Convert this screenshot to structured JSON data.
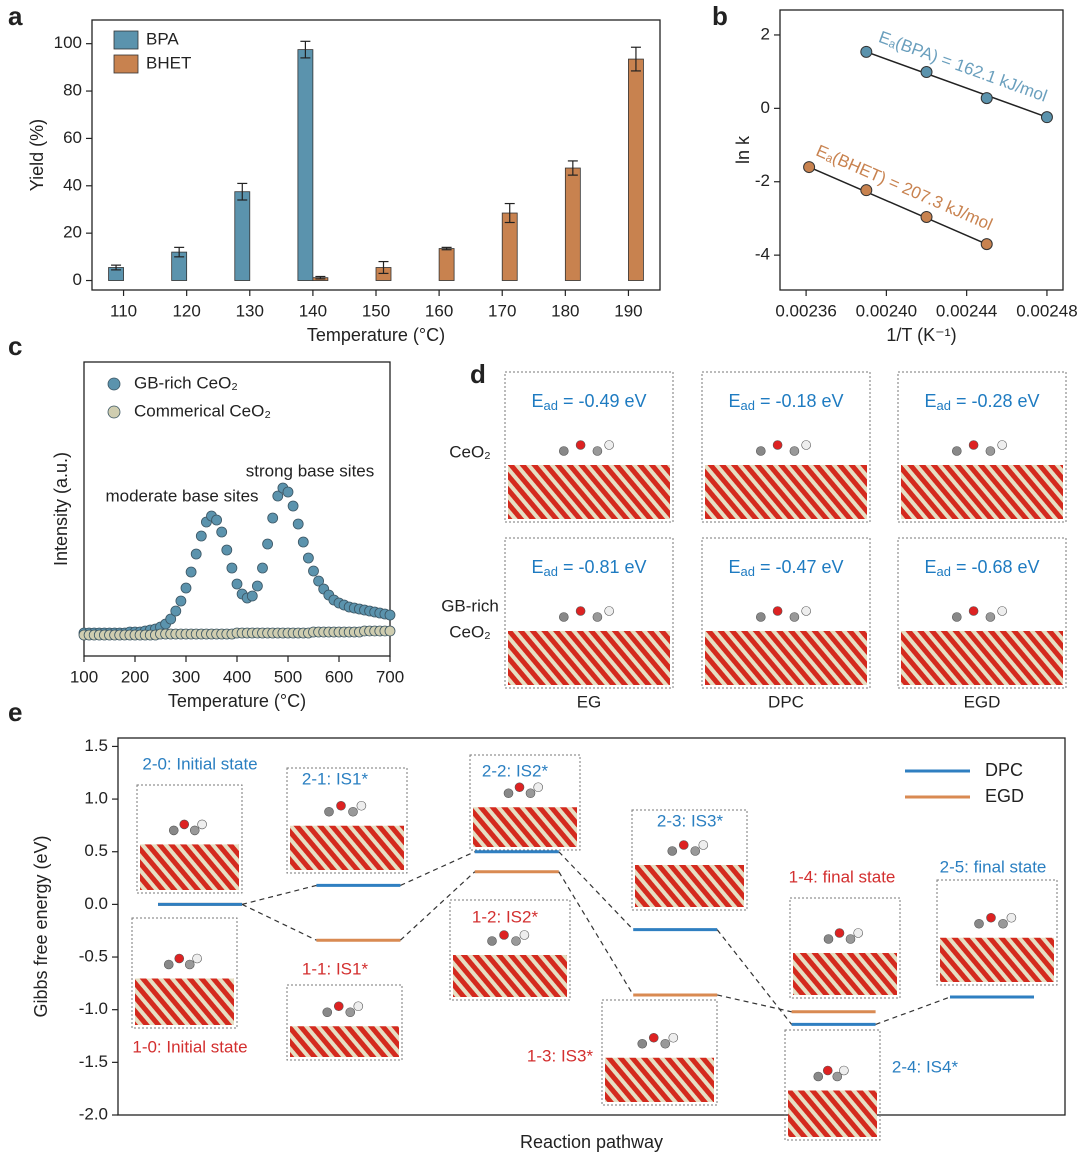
{
  "chart_data": [
    {
      "type": "bar",
      "panel_label": "a",
      "x_label": "Temperature (°C)",
      "y_label": "Yield (%)",
      "categories": [
        "110",
        "120",
        "130",
        "140",
        "150",
        "160",
        "170",
        "180",
        "190"
      ],
      "series": [
        {
          "name": "BPA",
          "color": "#5b93ad",
          "values": [
            5.5,
            12,
            37.5,
            97.5,
            null,
            null,
            null,
            null,
            null
          ],
          "errors": [
            1,
            2,
            3.5,
            3.5,
            null,
            null,
            null,
            null,
            null
          ]
        },
        {
          "name": "BHET",
          "color": "#c8824f",
          "values": [
            null,
            null,
            null,
            1.2,
            5.5,
            13.5,
            28.5,
            47.5,
            93.5
          ],
          "errors": [
            null,
            null,
            null,
            0.5,
            2.5,
            0.5,
            4,
            3,
            5
          ]
        }
      ],
      "ylim": [
        -4,
        110
      ],
      "yticks": [
        0,
        20,
        40,
        60,
        80,
        100
      ],
      "legend": "upper left",
      "error_bars": true
    },
    {
      "type": "scatter",
      "panel_label": "b",
      "x_label": "1/T (K⁻¹)",
      "y_label": "ln k",
      "fit": true,
      "series": [
        {
          "name": "BPA",
          "color": "#5b93ad",
          "x": [
            0.00239,
            0.00242,
            0.00245,
            0.00248
          ],
          "values": [
            1.54,
            0.99,
            0.28,
            -0.24
          ],
          "annotation": "Eₐ(BPA) = 162.1 kJ/mol",
          "annotation_color": "#6a9fbd"
        },
        {
          "name": "BHET",
          "color": "#c8824f",
          "x": [
            0.0023615,
            0.00239,
            0.00242,
            0.00245
          ],
          "values": [
            -1.6,
            -2.23,
            -2.96,
            -3.7
          ],
          "annotation": "Eₐ(BHET) = 207.3 kJ/mol",
          "annotation_color": "#c8824f"
        }
      ],
      "xlim": [
        0.002347,
        0.002488
      ],
      "xticks": [
        0.00236,
        {
          "value": 0.0024,
          "label": "0.00240"
        },
        0.00244,
        0.00248
      ],
      "ylim": [
        -4.95,
        2.68
      ],
      "yticks": [
        -4,
        -2,
        0,
        2
      ]
    },
    {
      "type": "line",
      "panel_label": "c",
      "x_label": "Temperature (°C)",
      "y_label": "Intensity (a.u.)",
      "markers": true,
      "legend": "upper left",
      "annotations": [
        "moderate base sites",
        "strong base sites"
      ],
      "x": [
        100,
        110,
        120,
        130,
        140,
        150,
        160,
        170,
        180,
        190,
        200,
        210,
        220,
        230,
        240,
        250,
        260,
        270,
        280,
        290,
        300,
        310,
        320,
        330,
        340,
        350,
        360,
        370,
        380,
        390,
        400,
        410,
        420,
        430,
        440,
        450,
        460,
        470,
        480,
        490,
        500,
        510,
        520,
        530,
        540,
        550,
        560,
        570,
        580,
        590,
        600,
        610,
        620,
        630,
        640,
        650,
        660,
        670,
        680,
        690,
        700
      ],
      "series": [
        {
          "name": "GB-rich CeO₂",
          "color": "#5b93ad",
          "values": [
            23,
            23,
            23,
            23,
            23,
            23,
            23,
            23,
            23,
            24,
            24,
            24,
            25,
            26,
            27,
            29,
            32,
            37,
            45,
            55,
            68,
            84,
            102,
            120,
            134,
            140,
            136,
            124,
            106,
            88,
            72,
            62,
            58,
            60,
            70,
            88,
            112,
            138,
            160,
            168,
            164,
            150,
            132,
            114,
            98,
            85,
            75,
            67,
            61,
            56,
            53,
            51,
            49,
            48,
            47,
            46,
            45,
            44,
            43,
            42,
            41
          ]
        },
        {
          "name": "Commerical CeO₂",
          "color": "#cfcdb0",
          "values": [
            21,
            21,
            21,
            21,
            21,
            21,
            21,
            21,
            21,
            21,
            21,
            21,
            21,
            21,
            21,
            22,
            22,
            22,
            22,
            22,
            22,
            22,
            22,
            22,
            22,
            22,
            22,
            22,
            22,
            22,
            23,
            23,
            23,
            23,
            23,
            23,
            23,
            23,
            23,
            23,
            23,
            23,
            23,
            23,
            23,
            24,
            24,
            24,
            24,
            24,
            24,
            24,
            24,
            24,
            24,
            25,
            25,
            25,
            25,
            25,
            25
          ]
        }
      ],
      "xlim": [
        100,
        700
      ],
      "xticks": [
        100,
        200,
        300,
        400,
        500,
        600,
        700
      ],
      "ylim": [
        0,
        294
      ]
    },
    {
      "type": "energy-levels",
      "panel_label": "e",
      "x_label": "Reaction pathway",
      "y_label": "Gibbs free energy (eV)",
      "legend": "upper right",
      "series": [
        {
          "name": "EGD",
          "color": "#d98a52",
          "label_color": "#d32f2f",
          "values": [
            0,
            -0.34,
            0.31,
            -0.86,
            -1.02
          ],
          "point_labels": [
            "1-0: Initial state",
            "1-1: IS1*",
            "1-2: IS2*",
            "1-3: IS3*",
            "1-4: final state"
          ]
        },
        {
          "name": "DPC",
          "color": "#2f7fc1",
          "label_color": "#2a7fc1",
          "values": [
            0,
            0.18,
            0.5,
            -0.24,
            -1.14,
            -0.88
          ],
          "point_labels": [
            "2-0: Initial state",
            "2-1: IS1*",
            "2-2: IS2*",
            "2-3: IS3*",
            "2-4: IS4*",
            "2-5: final state"
          ]
        }
      ],
      "ylim": [
        -2.0,
        1.58
      ],
      "yticks": [
        {
          "value": -2,
          "label": "-2.0"
        },
        -1.5,
        {
          "value": -1,
          "label": "-1.0"
        },
        -0.5,
        {
          "value": 0,
          "label": "0.0"
        },
        0.5,
        {
          "value": 1,
          "label": "1.0"
        },
        1.5
      ]
    }
  ],
  "panel_d": {
    "panel_label": "d",
    "row_labels": [
      [
        "CeO₂"
      ],
      [
        "GB-rich",
        "CeO₂"
      ]
    ],
    "column_labels": [
      "EG",
      "DPC",
      "EGD"
    ],
    "energies": [
      [
        "E",
        "ad",
        " = -0.49 eV"
      ],
      [
        "E",
        "ad",
        " = -0.18 eV"
      ],
      [
        "E",
        "ad",
        " = -0.28 eV"
      ],
      [
        "E",
        "ad",
        " = -0.81 eV"
      ],
      [
        "E",
        "ad",
        " = -0.47 eV"
      ],
      [
        "E",
        "ad",
        " = -0.68 eV"
      ]
    ]
  }
}
